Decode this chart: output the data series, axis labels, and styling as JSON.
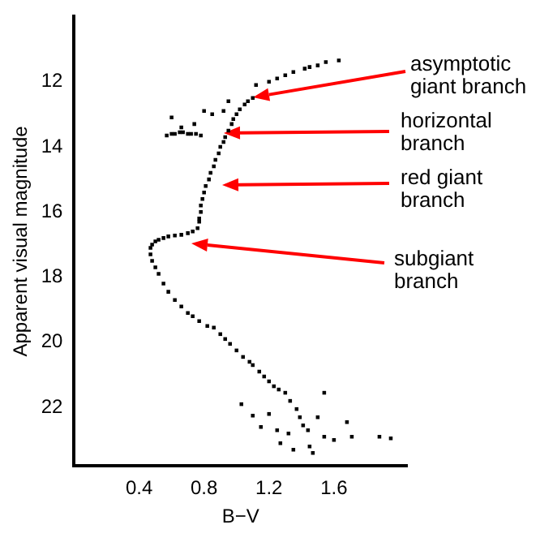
{
  "chart_data": {
    "type": "scatter",
    "xlabel": "B−V",
    "ylabel": "Apparent visual magnitude",
    "xlim": [
      0,
      2.05
    ],
    "xticks": [
      0.4,
      0.8,
      1.2,
      1.6
    ],
    "ylim": [
      23.8,
      10
    ],
    "yticks": [
      12,
      14,
      16,
      18,
      20,
      22
    ],
    "grid": false,
    "legend": false,
    "marker": "square",
    "series": [
      {
        "color": "#000000",
        "x": [
          1.42,
          1.5,
          1.55,
          1.63,
          1.3,
          1.2,
          1.25,
          1.12,
          1.35,
          1.45,
          1.1,
          1.07,
          1.05,
          1.02,
          1.0,
          0.98,
          0.97,
          0.95,
          0.93,
          0.92,
          0.9,
          0.89,
          0.87,
          0.86,
          0.84,
          0.83,
          0.81,
          0.8,
          0.79,
          0.78,
          0.78,
          0.77,
          0.77,
          0.76,
          0.57,
          0.6,
          0.62,
          0.65,
          0.67,
          0.7,
          0.72,
          0.75,
          0.78,
          0.66,
          0.74,
          0.6,
          0.8,
          0.85,
          0.95,
          0.92,
          0.7,
          0.73,
          0.66,
          0.62,
          0.58,
          0.55,
          0.52,
          0.5,
          0.48,
          0.47,
          0.47,
          0.48,
          0.5,
          0.52,
          0.55,
          0.58,
          0.62,
          0.66,
          0.7,
          0.73,
          0.77,
          0.82,
          0.86,
          0.9,
          0.93,
          0.96,
          1.0,
          1.04,
          1.08,
          1.1,
          1.14,
          1.17,
          1.2,
          1.23,
          1.26,
          1.3,
          1.33,
          1.37,
          1.39,
          1.41,
          1.44,
          1.54,
          1.03,
          1.1,
          1.71,
          1.88,
          1.95,
          1.47,
          1.27,
          1.68,
          1.54,
          1.2,
          1.32,
          1.45,
          1.6,
          1.15,
          1.35,
          1.5,
          1.25
        ],
        "values": [
          11.6,
          11.5,
          11.4,
          11.35,
          11.8,
          12.0,
          11.9,
          12.1,
          11.7,
          11.55,
          12.5,
          12.6,
          12.7,
          12.85,
          13.0,
          13.15,
          13.3,
          13.5,
          13.7,
          13.85,
          14.0,
          14.2,
          14.4,
          14.6,
          14.8,
          15.0,
          15.2,
          15.4,
          15.6,
          15.8,
          16.0,
          16.2,
          16.3,
          16.5,
          13.65,
          13.6,
          13.6,
          13.55,
          13.55,
          13.6,
          13.6,
          13.6,
          13.65,
          13.4,
          13.3,
          13.1,
          12.9,
          13.0,
          12.6,
          12.9,
          16.65,
          16.6,
          16.7,
          16.72,
          16.75,
          16.8,
          16.85,
          16.9,
          17.0,
          17.1,
          17.3,
          17.5,
          17.7,
          17.9,
          18.2,
          18.45,
          18.7,
          18.9,
          19.1,
          19.2,
          19.35,
          19.5,
          19.55,
          19.75,
          19.9,
          20.05,
          20.25,
          20.45,
          20.6,
          20.7,
          20.9,
          21.05,
          21.2,
          21.35,
          21.45,
          21.55,
          21.8,
          22.05,
          22.3,
          22.55,
          22.7,
          22.9,
          21.9,
          22.25,
          22.9,
          22.9,
          22.95,
          23.4,
          23.1,
          22.45,
          21.55,
          22.2,
          22.8,
          23.2,
          23.0,
          22.6,
          23.3,
          22.3,
          22.7
        ]
      }
    ],
    "annotations": [
      "asymptotic giant branch",
      "horizontal branch",
      "red giant branch",
      "subgiant branch"
    ]
  }
}
